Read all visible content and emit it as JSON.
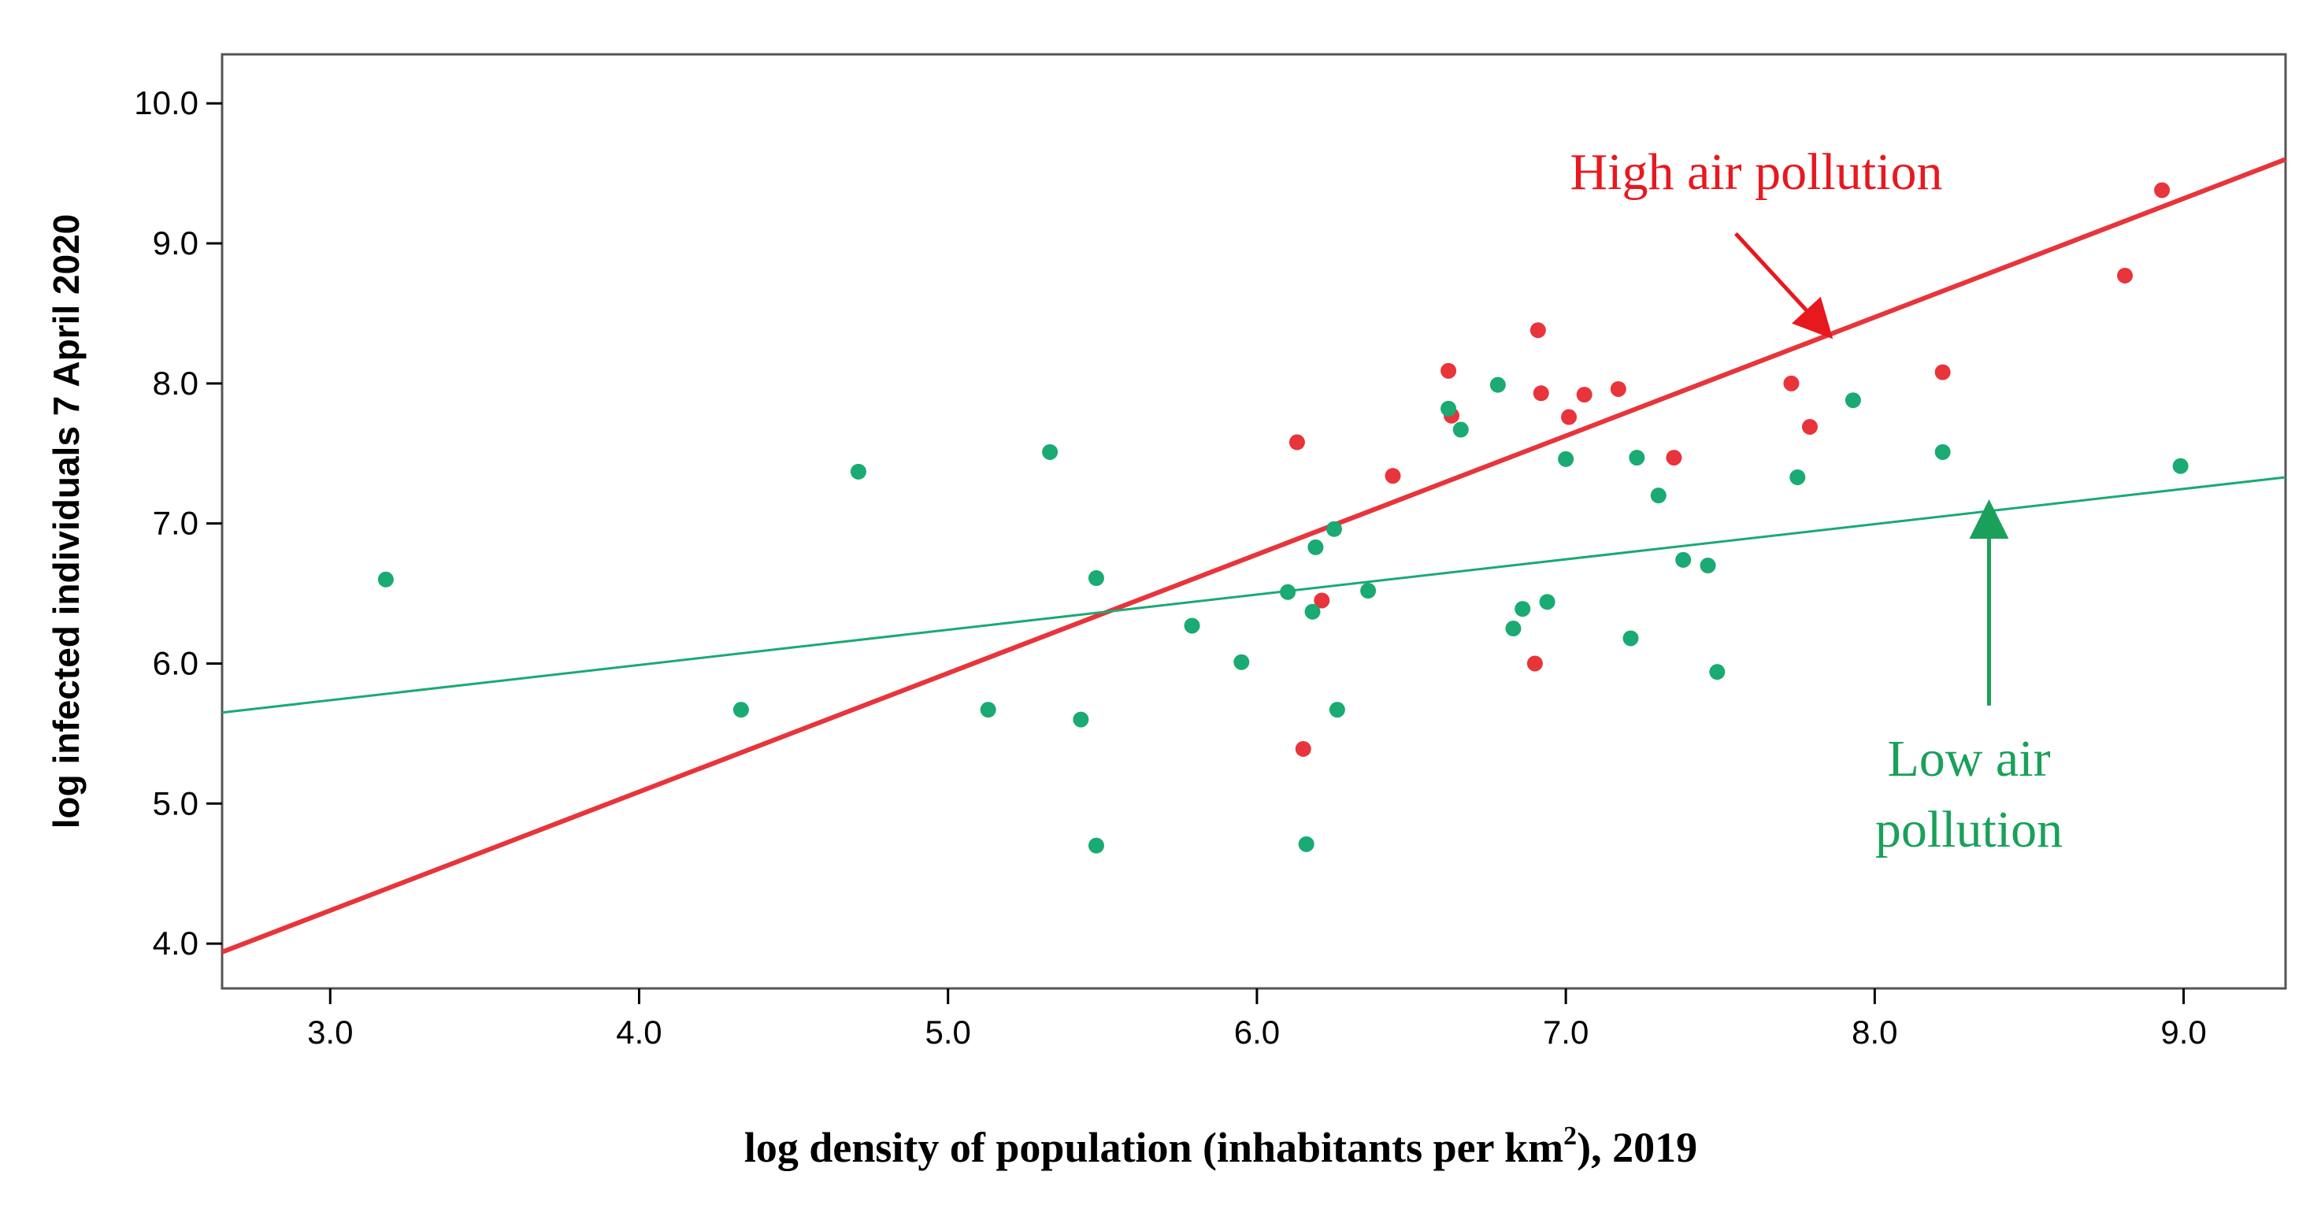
{
  "chart_data": {
    "type": "scatter",
    "title": "",
    "xlabel": "log density of population (inhabitants per km",
    "xlabel_sup": "2",
    "xlabel_tail": "), 2019",
    "ylabel": "log infected individuals 7 April 2020",
    "xlim": [
      2.65,
      9.33
    ],
    "ylim": [
      3.68,
      10.35
    ],
    "x_ticks": [
      3.0,
      4.0,
      5.0,
      6.0,
      7.0,
      8.0,
      9.0
    ],
    "y_ticks": [
      4.0,
      5.0,
      6.0,
      7.0,
      8.0,
      9.0,
      10.0
    ],
    "x_tick_labels": [
      "3.0",
      "4.0",
      "5.0",
      "6.0",
      "7.0",
      "8.0",
      "9.0"
    ],
    "y_tick_labels": [
      "4.0",
      "5.0",
      "6.0",
      "7.0",
      "8.0",
      "9.0",
      "10.0"
    ],
    "grid": false,
    "series": [
      {
        "name": "High air pollution",
        "color": "#e8343b",
        "points": [
          [
            6.13,
            7.58
          ],
          [
            6.15,
            5.39
          ],
          [
            6.21,
            6.45
          ],
          [
            6.44,
            7.34
          ],
          [
            6.62,
            8.09
          ],
          [
            6.63,
            7.77
          ],
          [
            6.9,
            6.0
          ],
          [
            6.91,
            8.38
          ],
          [
            6.92,
            7.93
          ],
          [
            7.01,
            7.76
          ],
          [
            7.06,
            7.92
          ],
          [
            7.17,
            7.96
          ],
          [
            7.35,
            7.47
          ],
          [
            7.73,
            8.0
          ],
          [
            7.79,
            7.69
          ],
          [
            8.22,
            8.08
          ],
          [
            8.81,
            8.77
          ],
          [
            8.93,
            9.38
          ]
        ],
        "fit": {
          "x": [
            2.65,
            9.33
          ],
          "y": [
            3.94,
            9.6
          ]
        }
      },
      {
        "name": "Low air pollution",
        "color": "#1aaa73",
        "points": [
          [
            3.18,
            6.6
          ],
          [
            4.33,
            5.67
          ],
          [
            4.71,
            7.37
          ],
          [
            5.13,
            5.67
          ],
          [
            5.33,
            7.51
          ],
          [
            5.43,
            5.6
          ],
          [
            5.48,
            6.61
          ],
          [
            5.48,
            4.7
          ],
          [
            5.79,
            6.27
          ],
          [
            5.95,
            6.01
          ],
          [
            6.1,
            6.51
          ],
          [
            6.16,
            4.71
          ],
          [
            6.18,
            6.37
          ],
          [
            6.19,
            6.83
          ],
          [
            6.25,
            6.96
          ],
          [
            6.26,
            5.67
          ],
          [
            6.36,
            6.52
          ],
          [
            6.62,
            7.82
          ],
          [
            6.66,
            7.67
          ],
          [
            6.78,
            7.99
          ],
          [
            6.83,
            6.25
          ],
          [
            6.86,
            6.39
          ],
          [
            6.94,
            6.44
          ],
          [
            7.0,
            7.46
          ],
          [
            7.21,
            6.18
          ],
          [
            7.23,
            7.47
          ],
          [
            7.3,
            7.2
          ],
          [
            7.38,
            6.74
          ],
          [
            7.46,
            6.7
          ],
          [
            7.49,
            5.94
          ],
          [
            7.75,
            7.33
          ],
          [
            7.93,
            7.88
          ],
          [
            8.22,
            7.51
          ],
          [
            8.99,
            7.41
          ]
        ],
        "fit": {
          "x": [
            2.65,
            9.33
          ],
          "y": [
            5.65,
            7.33
          ]
        }
      }
    ],
    "annotations": [
      {
        "text": "High air pollution",
        "color": "#e8181f",
        "arrow_from": [
          7.55,
          9.07
        ],
        "arrow_to": [
          7.83,
          8.4
        ]
      },
      {
        "text_lines": [
          "Low air",
          "pollution"
        ],
        "color": "#1aa05a",
        "arrow_from": [
          8.37,
          5.7
        ],
        "arrow_to": [
          8.37,
          7.06
        ]
      }
    ]
  }
}
